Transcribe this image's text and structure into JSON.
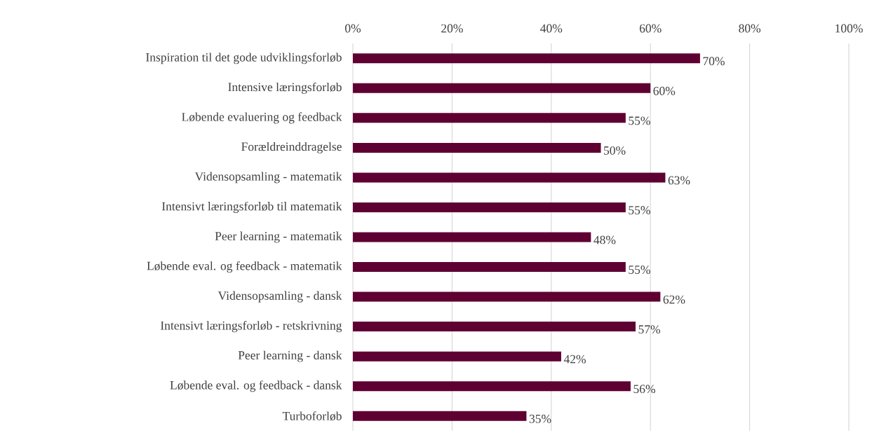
{
  "chart_data": {
    "type": "bar",
    "orientation": "horizontal",
    "categories": [
      "Inspiration til det gode udviklingsforløb",
      "Intensive læringsforløb",
      "Løbende evaluering og feedback",
      "Forældreinddragelse",
      "Vidensopsamling - matematik",
      "Intensivt læringsforløb til matematik",
      "Peer learning - matematik",
      "Løbende eval. og feedback - matematik",
      "Vidensopsamling - dansk",
      "Intensivt læringsforløb - retskrivning",
      "Peer learning - dansk",
      "Løbende eval. og feedback - dansk",
      "Turboforløb"
    ],
    "values": [
      70,
      60,
      55,
      50,
      63,
      55,
      48,
      55,
      62,
      57,
      42,
      56,
      35
    ],
    "value_labels": [
      "70%",
      "60%",
      "55%",
      "50%",
      "63%",
      "55%",
      "48%",
      "55%",
      "62%",
      "57%",
      "42%",
      "56%",
      "35%"
    ],
    "color": "#5f0032",
    "xlim": [
      0,
      100
    ],
    "xticks": [
      {
        "value": 0,
        "label": "0%"
      },
      {
        "value": 20,
        "label": "20%"
      },
      {
        "value": 40,
        "label": "40%"
      },
      {
        "value": 60,
        "label": "60%"
      },
      {
        "value": 80,
        "label": "80%"
      },
      {
        "value": 100,
        "label": "100%"
      }
    ],
    "grid": "x"
  }
}
